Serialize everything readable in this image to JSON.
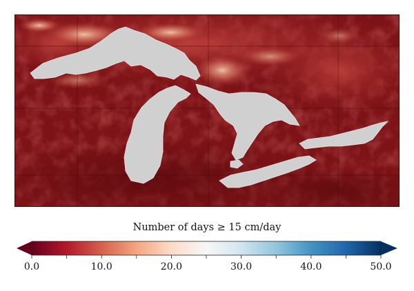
{
  "legend": {
    "title": "Number of days ≥ 15 cm/day",
    "min": 0,
    "max": 50,
    "ticks": [
      {
        "value": 0,
        "label": "0.0"
      },
      {
        "value": 10,
        "label": "10.0"
      },
      {
        "value": 20,
        "label": "20.0"
      },
      {
        "value": 30,
        "label": "30.0"
      },
      {
        "value": 40,
        "label": "40.0"
      },
      {
        "value": 50,
        "label": "50.0"
      }
    ],
    "colormap": [
      "#67001f",
      "#b2182b",
      "#d6604d",
      "#f4a582",
      "#fddbc7",
      "#f7f7f7",
      "#d1e5f0",
      "#92c5de",
      "#4393c3",
      "#2166ac",
      "#053061"
    ],
    "under_color": "#67001f",
    "over_color": "#053061"
  },
  "map": {
    "land_base_color": "#7a1216",
    "lake_color": "#d0d0d0",
    "features": [
      "Lake Superior",
      "Lake Michigan",
      "Lake Huron",
      "Lake Erie",
      "Lake Ontario"
    ]
  }
}
